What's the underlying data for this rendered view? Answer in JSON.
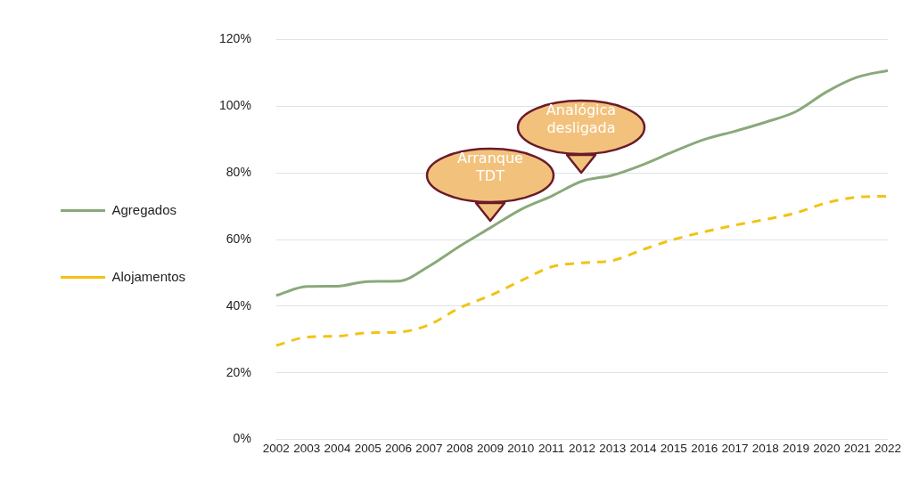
{
  "chart_data": {
    "type": "line",
    "categories": [
      "2002",
      "2003",
      "2004",
      "2005",
      "2006",
      "2007",
      "2008",
      "2009",
      "2010",
      "2011",
      "2012",
      "2013",
      "2014",
      "2015",
      "2016",
      "2017",
      "2018",
      "2019",
      "2020",
      "2021",
      "2022"
    ],
    "series": [
      {
        "name": "Agregados",
        "color": "#8aa97a",
        "line_style": "solid",
        "values": [
          43.2,
          45.9,
          46,
          47.4,
          47.5,
          52,
          58,
          63.5,
          69,
          73,
          77.5,
          79.3,
          82.5,
          86.4,
          90,
          92.5,
          95.2,
          98.4,
          104.3,
          108.7,
          110.7
        ]
      },
      {
        "name": "Alojamentos",
        "color": "#f2c314",
        "line_style": "dashed",
        "values": [
          28.2,
          30.7,
          31,
          32,
          32.2,
          34.4,
          39.5,
          43.2,
          47.6,
          51.8,
          53,
          53.7,
          57,
          60,
          62.3,
          64.3,
          66,
          68,
          71,
          72.7,
          73
        ]
      }
    ],
    "ylim": [
      0,
      120
    ],
    "yticks": [
      {
        "value": 0,
        "label": "0%"
      },
      {
        "value": 20,
        "label": "20%"
      },
      {
        "value": 40,
        "label": "40%"
      },
      {
        "value": 60,
        "label": "60%"
      },
      {
        "value": 80,
        "label": "80%"
      },
      {
        "value": 100,
        "label": "100%"
      },
      {
        "value": 120,
        "label": "120%"
      }
    ],
    "grid": "y",
    "legend": "left",
    "marker": "none",
    "annotations": [
      "Arranque TDT",
      "Analógica desligada"
    ]
  }
}
